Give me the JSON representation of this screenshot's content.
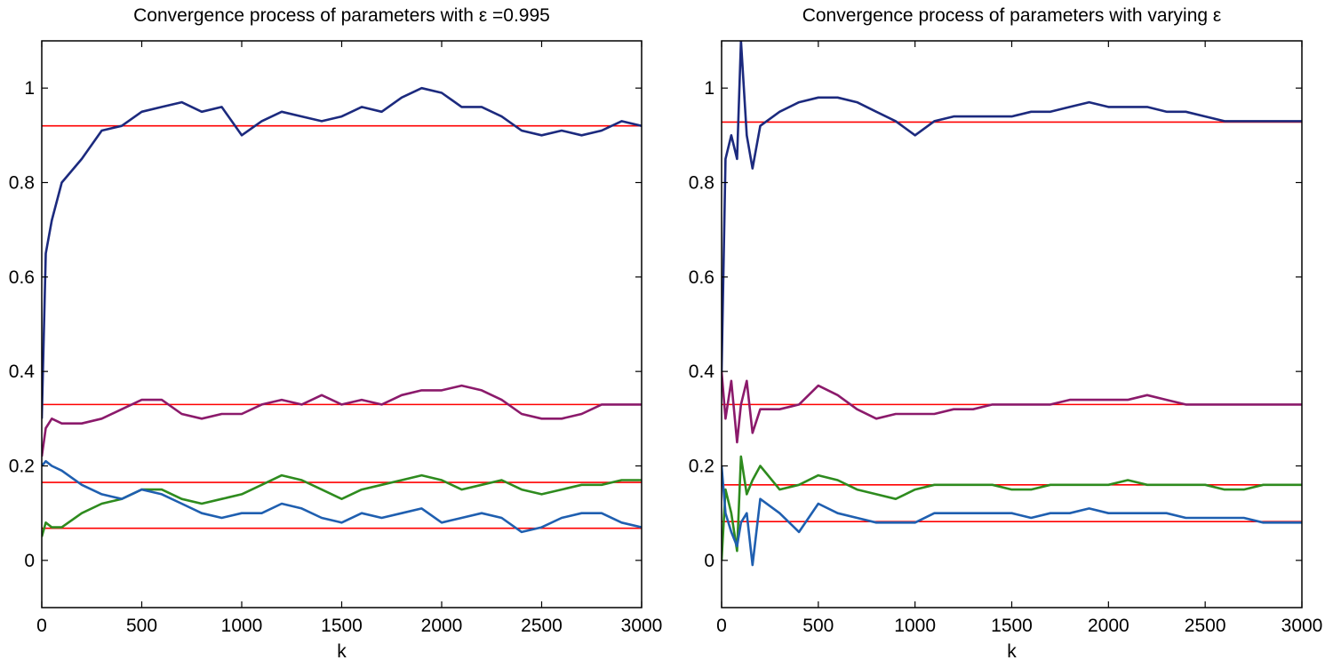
{
  "chart_data": [
    {
      "type": "line",
      "title": "Convergence process of parameters with ε =0.995",
      "xlabel": "k",
      "xlim": [
        0,
        3000
      ],
      "ylim": [
        -0.1,
        1.1
      ],
      "xticks": [
        0,
        500,
        1000,
        1500,
        2000,
        2500,
        3000
      ],
      "yticks": [
        0,
        0.2,
        0.4,
        0.6,
        0.8,
        1
      ],
      "x": [
        0,
        20,
        50,
        100,
        200,
        300,
        400,
        500,
        600,
        700,
        800,
        900,
        1000,
        1100,
        1200,
        1300,
        1400,
        1500,
        1600,
        1700,
        1800,
        1900,
        2000,
        2100,
        2200,
        2300,
        2400,
        2500,
        2600,
        2700,
        2800,
        2900,
        3000
      ],
      "series": [
        {
          "color": "#1c2a7e",
          "values": [
            0.3,
            0.65,
            0.72,
            0.8,
            0.85,
            0.91,
            0.92,
            0.95,
            0.96,
            0.97,
            0.95,
            0.96,
            0.9,
            0.93,
            0.95,
            0.94,
            0.93,
            0.94,
            0.96,
            0.95,
            0.98,
            1.0,
            0.99,
            0.96,
            0.96,
            0.94,
            0.91,
            0.9,
            0.91,
            0.9,
            0.91,
            0.93,
            0.92
          ]
        },
        {
          "color": "#8b1a6b",
          "values": [
            0.22,
            0.28,
            0.3,
            0.29,
            0.29,
            0.3,
            0.32,
            0.34,
            0.34,
            0.31,
            0.3,
            0.31,
            0.31,
            0.33,
            0.34,
            0.33,
            0.35,
            0.33,
            0.34,
            0.33,
            0.35,
            0.36,
            0.36,
            0.37,
            0.36,
            0.34,
            0.31,
            0.3,
            0.3,
            0.31,
            0.33,
            0.33,
            0.33
          ]
        },
        {
          "color": "#2e8b1e",
          "values": [
            0.05,
            0.08,
            0.07,
            0.07,
            0.1,
            0.12,
            0.13,
            0.15,
            0.15,
            0.13,
            0.12,
            0.13,
            0.14,
            0.16,
            0.18,
            0.17,
            0.15,
            0.13,
            0.15,
            0.16,
            0.17,
            0.18,
            0.17,
            0.15,
            0.16,
            0.17,
            0.15,
            0.14,
            0.15,
            0.16,
            0.16,
            0.17,
            0.17
          ]
        },
        {
          "color": "#1f5fb0",
          "values": [
            0.2,
            0.21,
            0.2,
            0.19,
            0.16,
            0.14,
            0.13,
            0.15,
            0.14,
            0.12,
            0.1,
            0.09,
            0.1,
            0.1,
            0.12,
            0.11,
            0.09,
            0.08,
            0.1,
            0.09,
            0.1,
            0.11,
            0.08,
            0.09,
            0.1,
            0.09,
            0.06,
            0.07,
            0.09,
            0.1,
            0.1,
            0.08,
            0.07
          ]
        }
      ],
      "hlines": {
        "color": "#ff0000",
        "values": [
          0.92,
          0.33,
          0.165,
          0.068
        ]
      }
    },
    {
      "type": "line",
      "title": "Convergence process of parameters with  varying ε",
      "xlabel": "k",
      "xlim": [
        0,
        3000
      ],
      "ylim": [
        -0.1,
        1.1
      ],
      "xticks": [
        0,
        500,
        1000,
        1500,
        2000,
        2500,
        3000
      ],
      "yticks": [
        0,
        0.2,
        0.4,
        0.6,
        0.8,
        1
      ],
      "x": [
        0,
        20,
        50,
        80,
        100,
        130,
        160,
        200,
        300,
        400,
        500,
        600,
        700,
        800,
        900,
        1000,
        1100,
        1200,
        1300,
        1400,
        1500,
        1600,
        1700,
        1800,
        1900,
        2000,
        2100,
        2200,
        2300,
        2400,
        2500,
        2600,
        2700,
        2800,
        2900,
        3000
      ],
      "series": [
        {
          "color": "#1c2a7e",
          "values": [
            0.4,
            0.85,
            0.9,
            0.85,
            1.1,
            0.9,
            0.83,
            0.92,
            0.95,
            0.97,
            0.98,
            0.98,
            0.97,
            0.95,
            0.93,
            0.9,
            0.93,
            0.94,
            0.94,
            0.94,
            0.94,
            0.95,
            0.95,
            0.96,
            0.97,
            0.96,
            0.96,
            0.96,
            0.95,
            0.95,
            0.94,
            0.93,
            0.93,
            0.93,
            0.93,
            0.93
          ]
        },
        {
          "color": "#8b1a6b",
          "values": [
            0.4,
            0.3,
            0.38,
            0.25,
            0.33,
            0.38,
            0.27,
            0.32,
            0.32,
            0.33,
            0.37,
            0.35,
            0.32,
            0.3,
            0.31,
            0.31,
            0.31,
            0.32,
            0.32,
            0.33,
            0.33,
            0.33,
            0.33,
            0.34,
            0.34,
            0.34,
            0.34,
            0.35,
            0.34,
            0.33,
            0.33,
            0.33,
            0.33,
            0.33,
            0.33,
            0.33
          ]
        },
        {
          "color": "#2e8b1e",
          "values": [
            0.0,
            0.15,
            0.1,
            0.02,
            0.22,
            0.14,
            0.17,
            0.2,
            0.15,
            0.16,
            0.18,
            0.17,
            0.15,
            0.14,
            0.13,
            0.15,
            0.16,
            0.16,
            0.16,
            0.16,
            0.15,
            0.15,
            0.16,
            0.16,
            0.16,
            0.16,
            0.17,
            0.16,
            0.16,
            0.16,
            0.16,
            0.15,
            0.15,
            0.16,
            0.16,
            0.16
          ]
        },
        {
          "color": "#1f5fb0",
          "values": [
            0.2,
            0.1,
            0.06,
            0.03,
            0.08,
            0.1,
            -0.01,
            0.13,
            0.1,
            0.06,
            0.12,
            0.1,
            0.09,
            0.08,
            0.08,
            0.08,
            0.1,
            0.1,
            0.1,
            0.1,
            0.1,
            0.09,
            0.1,
            0.1,
            0.11,
            0.1,
            0.1,
            0.1,
            0.1,
            0.09,
            0.09,
            0.09,
            0.09,
            0.08,
            0.08,
            0.08
          ]
        }
      ],
      "hlines": {
        "color": "#ff0000",
        "values": [
          0.928,
          0.33,
          0.16,
          0.082
        ]
      }
    }
  ]
}
